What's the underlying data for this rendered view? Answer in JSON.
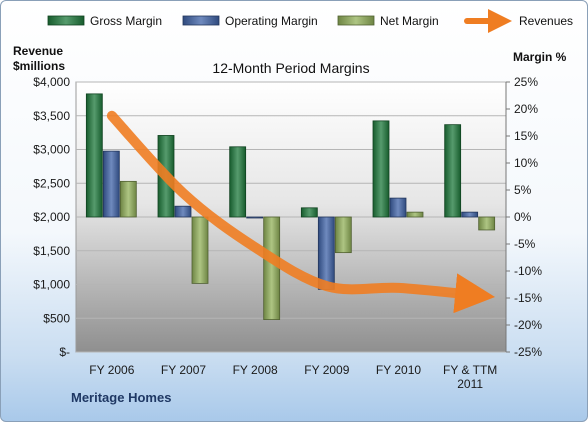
{
  "chart_data": {
    "type": "bar",
    "title": "12-Month Period Margins",
    "y_left_label_line1": "Revenue",
    "y_left_label_line2": "$millions",
    "y_right_label": "Margin %",
    "footer": "Meritage Homes",
    "categories": [
      "FY 2006",
      "FY 2007",
      "FY 2008",
      "FY 2009",
      "FY 2010",
      "FY & TTM 2011"
    ],
    "category_lines": [
      [
        "FY 2006"
      ],
      [
        "FY 2007"
      ],
      [
        "FY 2008"
      ],
      [
        "FY 2009"
      ],
      [
        "FY 2010"
      ],
      [
        "FY & TTM",
        "2011"
      ]
    ],
    "left_axis": {
      "min": 0,
      "max": 4000,
      "step": 500,
      "tick_labels": [
        "$-",
        "$500",
        "$1,000",
        "$1,500",
        "$2,000",
        "$2,500",
        "$3,000",
        "$3,500",
        "$4,000"
      ]
    },
    "right_axis": {
      "min": -25,
      "max": 25,
      "step": 5,
      "tick_labels": [
        "-25%",
        "-20%",
        "-15%",
        "-10%",
        "-5%",
        "0%",
        "5%",
        "10%",
        "15%",
        "20%",
        "25%"
      ]
    },
    "series": [
      {
        "name": "Gross Margin",
        "kind": "bar",
        "axis": "right",
        "color": "#1e7a3c",
        "values": [
          22.8,
          15.1,
          13.0,
          1.7,
          17.8,
          17.1
        ]
      },
      {
        "name": "Operating Margin",
        "kind": "bar",
        "axis": "right",
        "color": "#3f63a8",
        "values": [
          12.2,
          2.0,
          -0.1,
          -13.4,
          3.5,
          0.9
        ]
      },
      {
        "name": "Net Margin",
        "kind": "bar",
        "axis": "right",
        "color": "#93b15a",
        "values": [
          6.6,
          -12.3,
          -19.0,
          -6.6,
          0.9,
          -2.4
        ]
      },
      {
        "name": "Revenues",
        "kind": "line",
        "axis": "left",
        "color": "#ef7d22",
        "values": [
          3500,
          2350,
          1550,
          975,
          950,
          850
        ]
      }
    ],
    "legend_position": "top"
  }
}
